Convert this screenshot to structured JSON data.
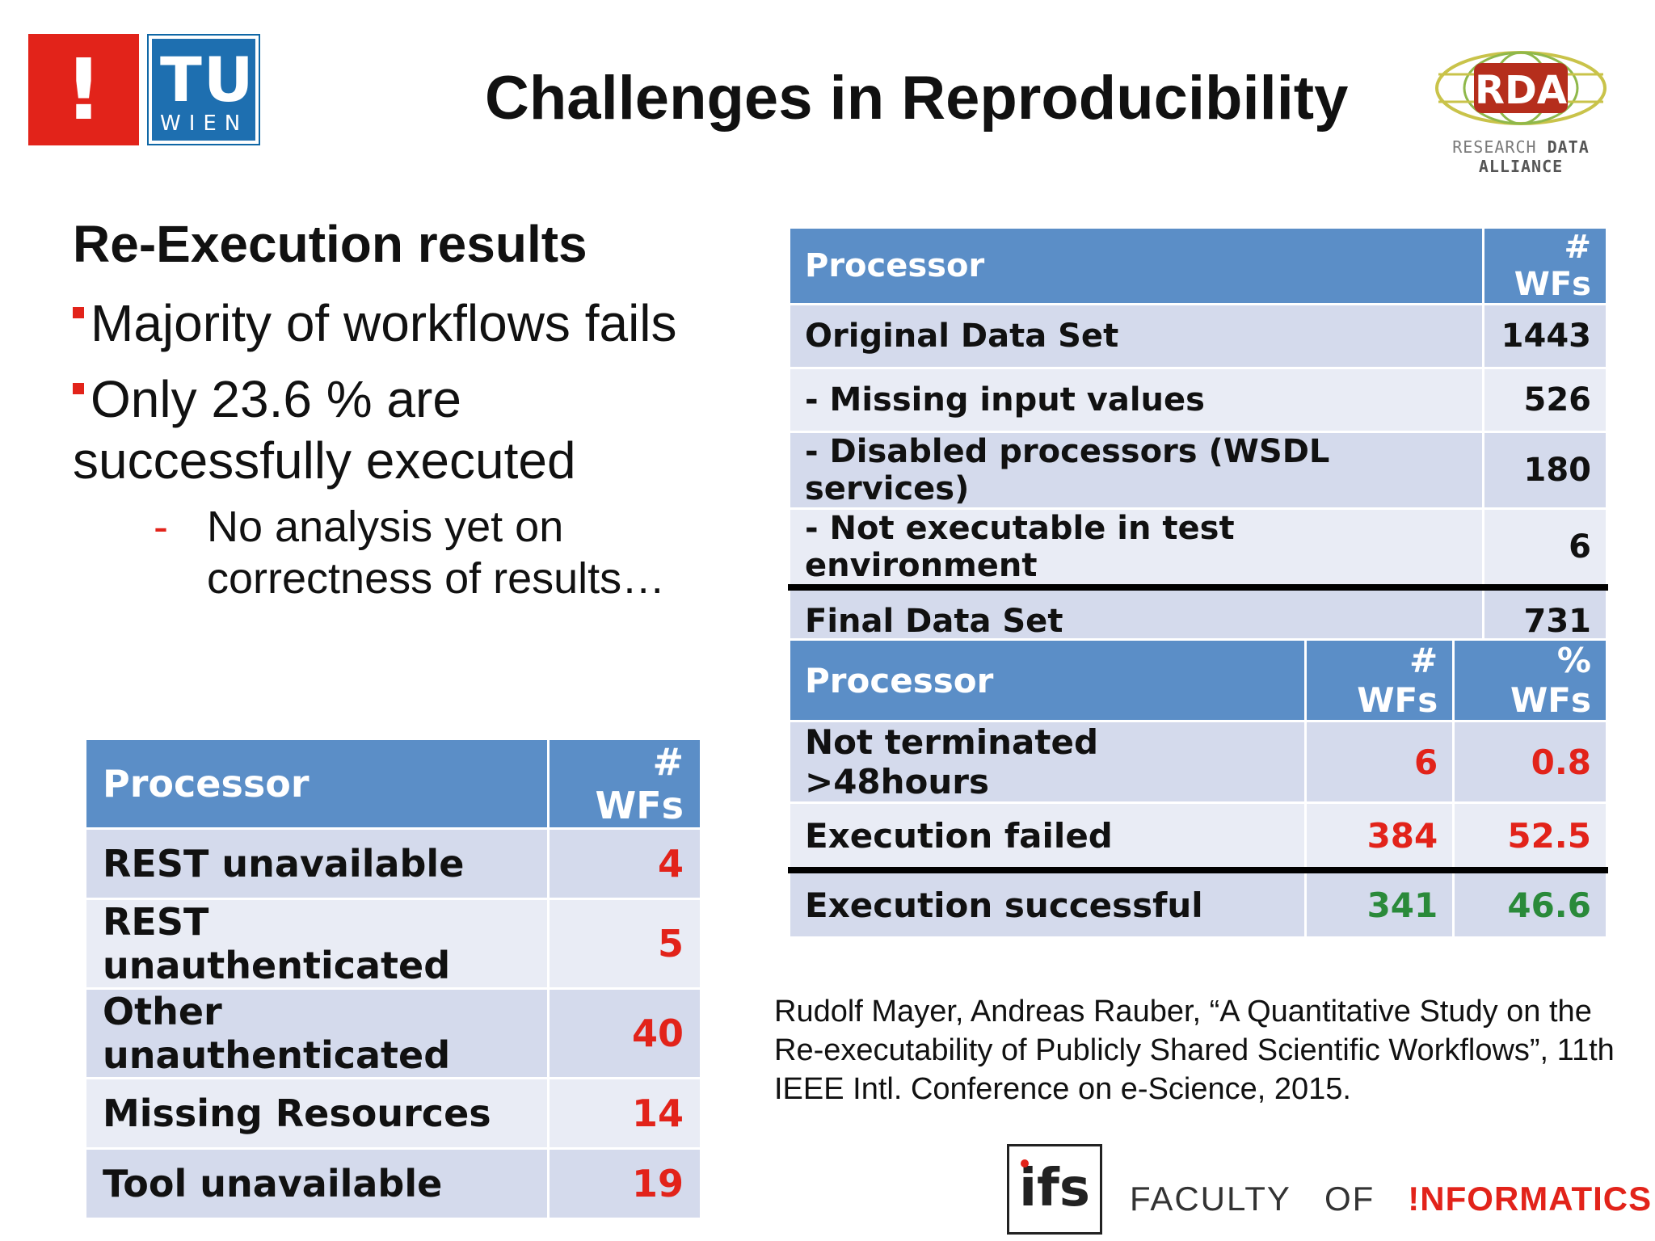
{
  "logos": {
    "tu_exclaim": "!",
    "tu_letters": "TU",
    "tu_wien": "WIEN",
    "rda_acronym": "RDA",
    "rda_line_1": "RESEARCH",
    "rda_line_2": "DATA ALLIANCE",
    "ifs": "ifs"
  },
  "title": "Challenges in Reproducibility",
  "heading": "Re-Execution results",
  "bullets": [
    "Majority of workflows fails",
    "Only 23.6 % are successfully executed"
  ],
  "sub_bullet": {
    "dash": "-",
    "text": "No analysis yet on correctness of results…"
  },
  "table_dataset": {
    "headers": [
      "Processor",
      "# WFs"
    ],
    "rows": [
      [
        "Original Data Set",
        "1443"
      ],
      [
        "- Missing input values",
        "526"
      ],
      [
        "- Disabled processors (WSDL services)",
        "180"
      ],
      [
        "- Not executable in test environment",
        "6"
      ],
      [
        "Final Data Set",
        "731"
      ]
    ]
  },
  "table_execution": {
    "headers": [
      "Processor",
      "# WFs",
      "% WFs"
    ],
    "rows": [
      [
        "Not terminated >48hours",
        "6",
        "0.8"
      ],
      [
        "Execution failed",
        "384",
        "52.5"
      ],
      [
        "Execution successful",
        "341",
        "46.6"
      ]
    ]
  },
  "table_failures": {
    "headers": [
      "Processor",
      "# WFs"
    ],
    "rows": [
      [
        "REST unavailable",
        "4"
      ],
      [
        "REST unauthenticated",
        "5"
      ],
      [
        "Other unauthenticated",
        "40"
      ],
      [
        "Missing Resources",
        "14"
      ],
      [
        "Tool unavailable",
        "19"
      ]
    ]
  },
  "citation": "Rudolf Mayer, Andreas Rauber, “A Quantitative Study on the Re-executability of Publicly Shared Scientific Workflows”, 11th IEEE Intl. Conference on e-Science, 2015.",
  "footer": {
    "faculty": "FACULTY",
    "of": "OF",
    "informatics": "!NFORMATICS"
  },
  "colors": {
    "accent_red": "#e2231a",
    "header_blue": "#5b8ec7",
    "success_green": "#2a8a3a"
  }
}
